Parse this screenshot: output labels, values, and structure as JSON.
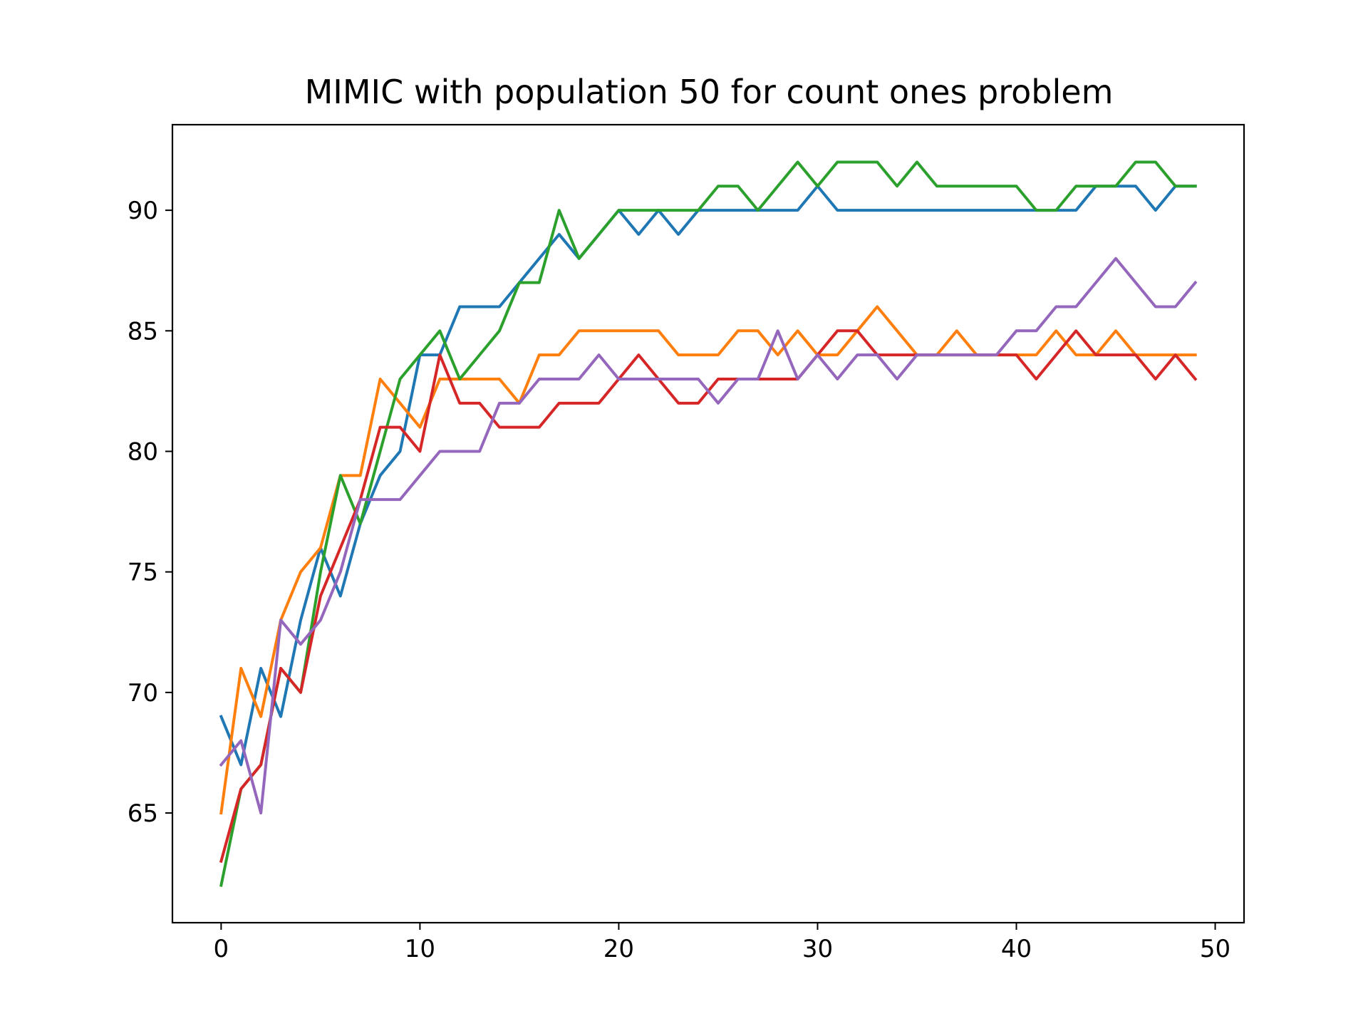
{
  "chart_data": {
    "type": "line",
    "title": "MIMIC with population 50 for count ones problem",
    "xlabel": "",
    "ylabel": "",
    "xlim": [
      -2.45,
      51.45
    ],
    "ylim": [
      60.45,
      93.55
    ],
    "xticks": [
      0,
      10,
      20,
      30,
      40,
      50
    ],
    "yticks": [
      65,
      70,
      75,
      80,
      85,
      90
    ],
    "grid": false,
    "legend": "none",
    "x": [
      0,
      1,
      2,
      3,
      4,
      5,
      6,
      7,
      8,
      9,
      10,
      11,
      12,
      13,
      14,
      15,
      16,
      17,
      18,
      19,
      20,
      21,
      22,
      23,
      24,
      25,
      26,
      27,
      28,
      29,
      30,
      31,
      32,
      33,
      34,
      35,
      36,
      37,
      38,
      39,
      40,
      41,
      42,
      43,
      44,
      45,
      46,
      47,
      48,
      49
    ],
    "series": [
      {
        "color": "#1f77b4",
        "values": [
          69,
          67,
          71,
          69,
          73,
          76,
          74,
          77,
          79,
          80,
          84,
          84,
          86,
          86,
          86,
          87,
          88,
          89,
          88,
          89,
          90,
          89,
          90,
          89,
          90,
          90,
          90,
          90,
          90,
          90,
          91,
          90,
          90,
          90,
          90,
          90,
          90,
          90,
          90,
          90,
          90,
          90,
          90,
          90,
          91,
          91,
          91,
          90,
          91,
          91
        ]
      },
      {
        "color": "#ff7f0e",
        "values": [
          65,
          71,
          69,
          73,
          75,
          76,
          79,
          79,
          83,
          82,
          81,
          83,
          83,
          83,
          83,
          82,
          84,
          84,
          85,
          85,
          85,
          85,
          85,
          84,
          84,
          84,
          85,
          85,
          84,
          85,
          84,
          84,
          85,
          86,
          85,
          84,
          84,
          85,
          84,
          84,
          84,
          84,
          85,
          84,
          84,
          85,
          84,
          84,
          84,
          84
        ]
      },
      {
        "color": "#2ca02c",
        "values": [
          62,
          66,
          67,
          71,
          70,
          75,
          79,
          77,
          80,
          83,
          84,
          85,
          83,
          84,
          85,
          87,
          87,
          90,
          88,
          89,
          90,
          90,
          90,
          90,
          90,
          91,
          91,
          90,
          91,
          92,
          91,
          92,
          92,
          92,
          91,
          92,
          91,
          91,
          91,
          91,
          91,
          90,
          90,
          91,
          91,
          91,
          92,
          92,
          91,
          91
        ]
      },
      {
        "color": "#d62728",
        "values": [
          63,
          66,
          67,
          71,
          70,
          74,
          76,
          78,
          81,
          81,
          80,
          84,
          82,
          82,
          81,
          81,
          81,
          82,
          82,
          82,
          83,
          84,
          83,
          82,
          82,
          83,
          83,
          83,
          83,
          83,
          84,
          85,
          85,
          84,
          84,
          84,
          84,
          84,
          84,
          84,
          84,
          83,
          84,
          85,
          84,
          84,
          84,
          83,
          84,
          83
        ]
      },
      {
        "color": "#9467bd",
        "values": [
          67,
          68,
          65,
          73,
          72,
          73,
          75,
          78,
          78,
          78,
          79,
          80,
          80,
          80,
          82,
          82,
          83,
          83,
          83,
          84,
          83,
          83,
          83,
          83,
          83,
          82,
          83,
          83,
          85,
          83,
          84,
          83,
          84,
          84,
          83,
          84,
          84,
          84,
          84,
          84,
          85,
          85,
          86,
          86,
          87,
          88,
          87,
          86,
          86,
          87
        ]
      }
    ]
  }
}
